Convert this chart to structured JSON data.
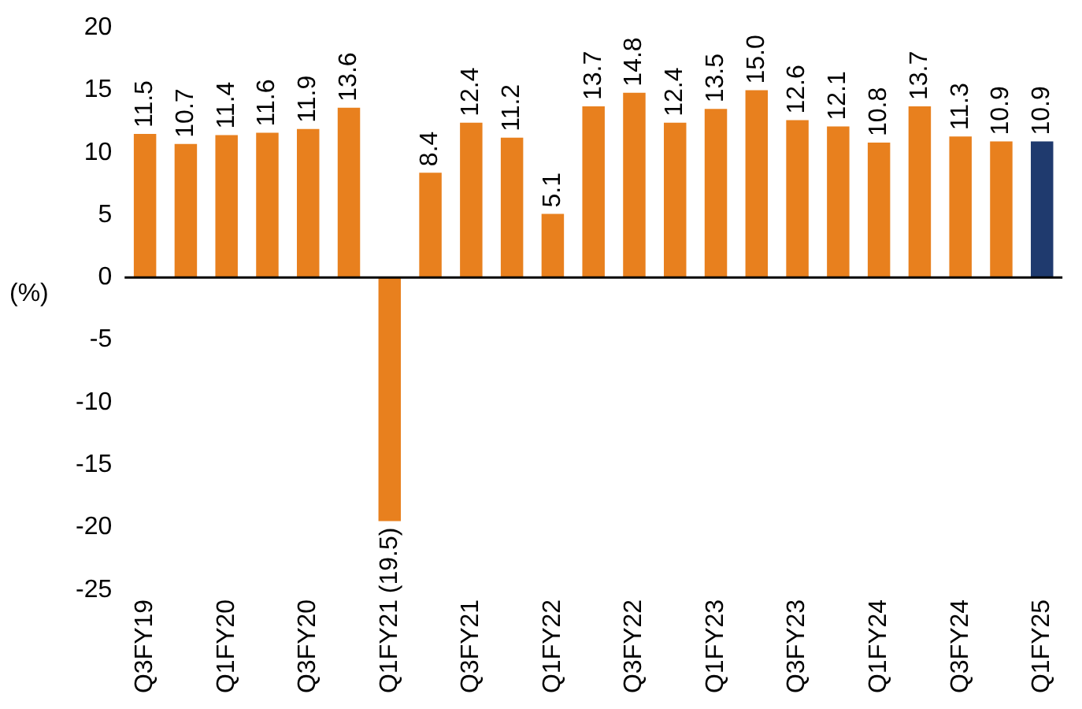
{
  "chart_data": {
    "type": "bar",
    "ylabel": "(%)",
    "categories": [
      "Q3FY19",
      null,
      "Q1FY20",
      null,
      "Q3FY20",
      null,
      "Q1FY21",
      null,
      "Q3FY21",
      null,
      "Q1FY22",
      null,
      "Q3FY22",
      null,
      "Q1FY23",
      null,
      "Q3FY23",
      null,
      "Q1FY24",
      null,
      "Q3FY24",
      null,
      "Q1FY25"
    ],
    "values": [
      11.5,
      10.7,
      11.4,
      11.6,
      11.9,
      13.6,
      -19.5,
      8.4,
      12.4,
      11.2,
      5.1,
      13.7,
      14.8,
      12.4,
      13.5,
      15.0,
      12.6,
      12.1,
      10.8,
      13.7,
      11.3,
      10.9,
      10.9
    ],
    "colors": [
      "#e8801e",
      "#e8801e",
      "#e8801e",
      "#e8801e",
      "#e8801e",
      "#e8801e",
      "#e8801e",
      "#e8801e",
      "#e8801e",
      "#e8801e",
      "#e8801e",
      "#e8801e",
      "#e8801e",
      "#e8801e",
      "#e8801e",
      "#e8801e",
      "#e8801e",
      "#e8801e",
      "#e8801e",
      "#e8801e",
      "#e8801e",
      "#e8801e",
      "#1f3a6e"
    ],
    "value_labels": [
      "11.5",
      "10.7",
      "11.4",
      "11.6",
      "11.9",
      "13.6",
      "(19.5)",
      "8.4",
      "12.4",
      "11.2",
      "5.1",
      "13.7",
      "14.8",
      "12.4",
      "13.5",
      "15.0",
      "12.6",
      "12.1",
      "10.8",
      "13.7",
      "11.3",
      "10.9",
      "10.9"
    ],
    "ylim": [
      -25,
      20
    ],
    "yticks": [
      -25,
      -20,
      -15,
      -10,
      -5,
      0,
      5,
      10,
      15,
      20
    ],
    "ref_lines": [
      {
        "axis": "y",
        "value": 0,
        "color": "#000000"
      }
    ],
    "grid": false,
    "legend": false
  }
}
